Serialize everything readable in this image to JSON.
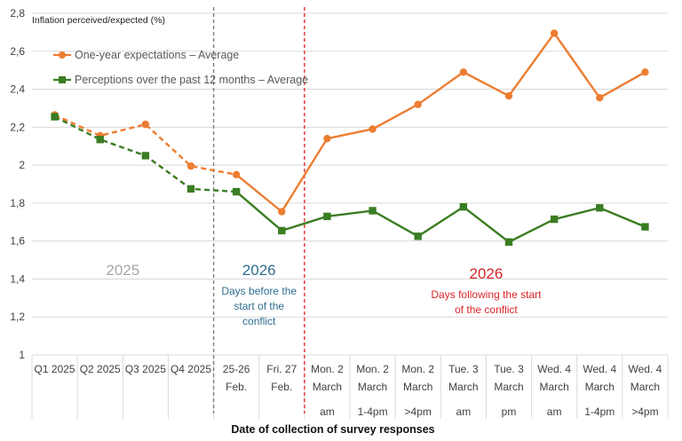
{
  "chart_data": {
    "type": "line",
    "ylabel": "Inflation perceived/expected (%)",
    "xlabel": "Date of collection of survey responses",
    "ylim": [
      1,
      2.8
    ],
    "yticks": [
      "1",
      "1,2",
      "1,4",
      "1,6",
      "1,8",
      "2",
      "2,2",
      "2,4",
      "2,6",
      "2,8"
    ],
    "grid": true,
    "legend_position": "top-left",
    "categories": [
      {
        "line1": "Q1 2025",
        "line2": "",
        "line3": ""
      },
      {
        "line1": "Q2 2025",
        "line2": "",
        "line3": ""
      },
      {
        "line1": "Q3 2025",
        "line2": "",
        "line3": ""
      },
      {
        "line1": "Q4 2025",
        "line2": "",
        "line3": ""
      },
      {
        "line1": "25-26",
        "line2": "Feb.",
        "line3": ""
      },
      {
        "line1": "Fri. 27",
        "line2": "Feb.",
        "line3": ""
      },
      {
        "line1": "Mon. 2",
        "line2": "March",
        "line3": "am"
      },
      {
        "line1": "Mon. 2",
        "line2": "March",
        "line3": "1-4pm"
      },
      {
        "line1": "Mon. 2",
        "line2": "March",
        "line3": ">4pm"
      },
      {
        "line1": "Tue. 3",
        "line2": "March",
        "line3": "am"
      },
      {
        "line1": "Tue. 3",
        "line2": "March",
        "line3": "pm"
      },
      {
        "line1": "Wed. 4",
        "line2": "March",
        "line3": "am"
      },
      {
        "line1": "Wed. 4",
        "line2": "March",
        "line3": "1-4pm"
      },
      {
        "line1": "Wed. 4",
        "line2": "March",
        "line3": ">4pm"
      }
    ],
    "series": [
      {
        "name": "One-year expectations – Average",
        "color": "#ED7D31",
        "marker": "circle",
        "dashed_until_index": 4,
        "values": [
          2.265,
          2.155,
          2.215,
          1.995,
          1.95,
          1.755,
          2.14,
          2.19,
          2.32,
          2.49,
          2.365,
          2.695,
          2.355,
          2.49
        ]
      },
      {
        "name": "Perceptions over the past 12 months – Average",
        "color": "#3A7D22",
        "marker": "square",
        "dashed_until_index": 4,
        "values": [
          2.255,
          2.135,
          2.05,
          1.875,
          1.86,
          1.655,
          1.73,
          1.76,
          1.625,
          1.78,
          1.595,
          1.715,
          1.775,
          1.675
        ]
      }
    ],
    "annotations": {
      "period_2025": {
        "title": "2025",
        "color": "#A6A6A6"
      },
      "period_before": {
        "title": "2026",
        "subtitle": [
          "Days before the",
          "start of the",
          "conflict"
        ],
        "color": "#2E6E8E"
      },
      "period_after": {
        "title": "2026",
        "subtitle": [
          "Days following the start",
          "of the conflict"
        ],
        "color": "#D9252A"
      }
    },
    "dividers": [
      {
        "after_index": 3,
        "color": "#808080",
        "style": "dashed"
      },
      {
        "after_index": 5,
        "color": "#E03030",
        "style": "dashed"
      }
    ]
  }
}
